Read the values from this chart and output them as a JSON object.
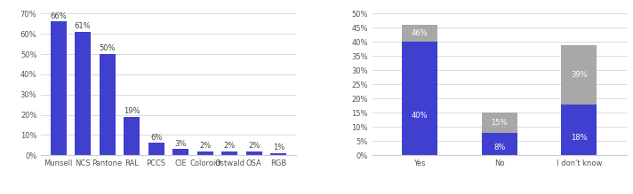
{
  "left": {
    "categories": [
      "Munsell",
      "NCS",
      "Pantone",
      "RAL",
      "PCCS",
      "CIE",
      "Coloroid",
      "Ostwald",
      "OSA",
      "RGB"
    ],
    "values": [
      66,
      61,
      50,
      19,
      6,
      3,
      2,
      2,
      2,
      1
    ],
    "bar_color": "#4040d0",
    "ylim": [
      0,
      70
    ],
    "yticks": [
      0,
      10,
      20,
      30,
      40,
      50,
      60,
      70
    ],
    "ytick_labels": [
      "0%",
      "10%",
      "20%",
      "30%",
      "40%",
      "50%",
      "60%",
      "70%"
    ]
  },
  "right": {
    "categories": [
      "Yes",
      "No",
      "I don't know"
    ],
    "blue_values": [
      40,
      8,
      18
    ],
    "gray_values": [
      6,
      7,
      21
    ],
    "blue_labels": [
      "40%",
      "8%",
      "18%"
    ],
    "gray_labels": [
      "46%",
      "15%",
      "39%"
    ],
    "blue_color": "#4040d0",
    "gray_color": "#a8a8a8",
    "ylim": [
      0,
      50
    ],
    "yticks": [
      0,
      5,
      10,
      15,
      20,
      25,
      30,
      35,
      40,
      45,
      50
    ],
    "ytick_labels": [
      "0%",
      "5%",
      "10%",
      "15%",
      "20%",
      "25%",
      "30%",
      "35%",
      "40%",
      "45%",
      "50%"
    ]
  },
  "bg_color": "#ffffff",
  "grid_color": "#cccccc",
  "bar_label_fontsize": 6.0,
  "tick_fontsize": 6.0
}
